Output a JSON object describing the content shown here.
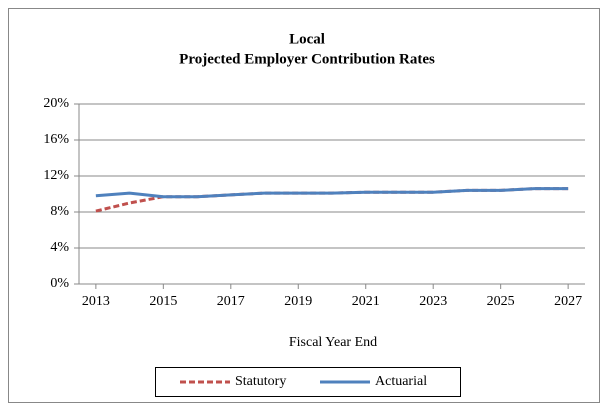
{
  "chart_data": {
    "type": "line",
    "title": "Local",
    "subtitle": "Projected Employer Contribution Rates",
    "x_label": "Fiscal Year End",
    "x": [
      2013,
      2014,
      2015,
      2016,
      2017,
      2018,
      2019,
      2020,
      2021,
      2022,
      2023,
      2024,
      2025,
      2026,
      2027
    ],
    "xlim": [
      2012.5,
      2027.5
    ],
    "xticks": [
      2013,
      2015,
      2017,
      2019,
      2021,
      2023,
      2025,
      2027
    ],
    "ylim": [
      0,
      20
    ],
    "yticks": [
      {
        "value": 0,
        "label": "0%"
      },
      {
        "value": 4,
        "label": "4%"
      },
      {
        "value": 8,
        "label": "8%"
      },
      {
        "value": 12,
        "label": "12%"
      },
      {
        "value": 16,
        "label": "16%"
      },
      {
        "value": 20,
        "label": "20%"
      }
    ],
    "grid": true,
    "legend": "bottom",
    "series": [
      {
        "name": "Statutory",
        "color": "#c0504d",
        "dash": true,
        "values": [
          8.1,
          9.0,
          9.7,
          9.7,
          9.9,
          10.1,
          10.1,
          10.1,
          10.2,
          10.2,
          10.2,
          10.4,
          10.4,
          10.6,
          10.6
        ]
      },
      {
        "name": "Actuarial",
        "color": "#4f81bd",
        "dash": false,
        "values": [
          9.8,
          10.1,
          9.7,
          9.7,
          9.9,
          10.1,
          10.1,
          10.1,
          10.2,
          10.2,
          10.2,
          10.4,
          10.4,
          10.6,
          10.6
        ]
      }
    ]
  }
}
